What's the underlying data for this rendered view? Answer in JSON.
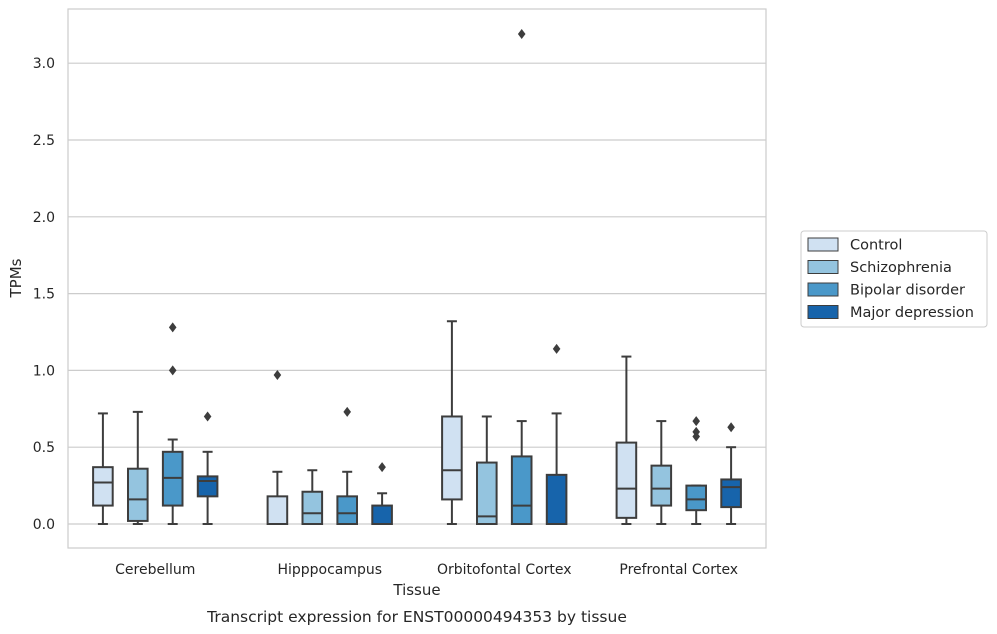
{
  "chart_data": {
    "type": "box",
    "title": "",
    "caption": "Transcript expression for ENST00000494353 by tissue",
    "xlabel": "Tissue",
    "ylabel": "TPMs",
    "ylim": [
      -0.155,
      3.36
    ],
    "yticks": [
      "0.0",
      "0.5",
      "1.0",
      "1.5",
      "2.0",
      "2.5",
      "3.0"
    ],
    "ytick_values": [
      0,
      0.5,
      1.0,
      1.5,
      2.0,
      2.5,
      3.0
    ],
    "grid": "horizontal",
    "legend_position": "right",
    "categories": [
      "Cerebellum",
      "Hipppocampus",
      "Orbitofontal Cortex",
      "Prefrontal Cortex"
    ],
    "series": [
      {
        "name": "Control",
        "color": "#d0e1f2",
        "boxes": [
          {
            "whislo": 0.0,
            "q1": 0.12,
            "med": 0.27,
            "q3": 0.37,
            "whishi": 0.72,
            "fliers": []
          },
          {
            "whislo": 0.0,
            "q1": 0.0,
            "med": 0.0,
            "q3": 0.18,
            "whishi": 0.34,
            "fliers": [
              0.97
            ]
          },
          {
            "whislo": 0.0,
            "q1": 0.16,
            "med": 0.35,
            "q3": 0.7,
            "whishi": 1.32,
            "fliers": []
          },
          {
            "whislo": 0.0,
            "q1": 0.04,
            "med": 0.23,
            "q3": 0.53,
            "whishi": 1.09,
            "fliers": []
          }
        ]
      },
      {
        "name": "Schizophrenia",
        "color": "#94c4df",
        "boxes": [
          {
            "whislo": 0.0,
            "q1": 0.02,
            "med": 0.16,
            "q3": 0.36,
            "whishi": 0.73,
            "fliers": []
          },
          {
            "whislo": 0.0,
            "q1": 0.0,
            "med": 0.07,
            "q3": 0.21,
            "whishi": 0.35,
            "fliers": []
          },
          {
            "whislo": 0.0,
            "q1": 0.0,
            "med": 0.05,
            "q3": 0.4,
            "whishi": 0.7,
            "fliers": []
          },
          {
            "whislo": 0.0,
            "q1": 0.12,
            "med": 0.23,
            "q3": 0.38,
            "whishi": 0.67,
            "fliers": []
          }
        ]
      },
      {
        "name": "Bipolar disorder",
        "color": "#4a98c9",
        "boxes": [
          {
            "whislo": 0.0,
            "q1": 0.12,
            "med": 0.3,
            "q3": 0.47,
            "whishi": 0.55,
            "fliers": [
              1.0,
              1.28
            ]
          },
          {
            "whislo": 0.0,
            "q1": 0.0,
            "med": 0.07,
            "q3": 0.18,
            "whishi": 0.34,
            "fliers": [
              0.73
            ]
          },
          {
            "whislo": 0.0,
            "q1": 0.0,
            "med": 0.12,
            "q3": 0.44,
            "whishi": 0.67,
            "fliers": [
              3.19
            ]
          },
          {
            "whislo": 0.0,
            "q1": 0.09,
            "med": 0.16,
            "q3": 0.25,
            "whishi": 0.25,
            "fliers": [
              0.57,
              0.6,
              0.67
            ]
          }
        ]
      },
      {
        "name": "Major depression",
        "color": "#1764ab",
        "boxes": [
          {
            "whislo": 0.0,
            "q1": 0.18,
            "med": 0.28,
            "q3": 0.31,
            "whishi": 0.47,
            "fliers": [
              0.7
            ]
          },
          {
            "whislo": 0.0,
            "q1": 0.0,
            "med": 0.0,
            "q3": 0.12,
            "whishi": 0.2,
            "fliers": [
              0.37
            ]
          },
          {
            "whislo": 0.0,
            "q1": 0.0,
            "med": 0.0,
            "q3": 0.32,
            "whishi": 0.72,
            "fliers": [
              1.14
            ]
          },
          {
            "whislo": 0.0,
            "q1": 0.11,
            "med": 0.24,
            "q3": 0.29,
            "whishi": 0.5,
            "fliers": [
              0.63
            ]
          }
        ]
      }
    ]
  }
}
